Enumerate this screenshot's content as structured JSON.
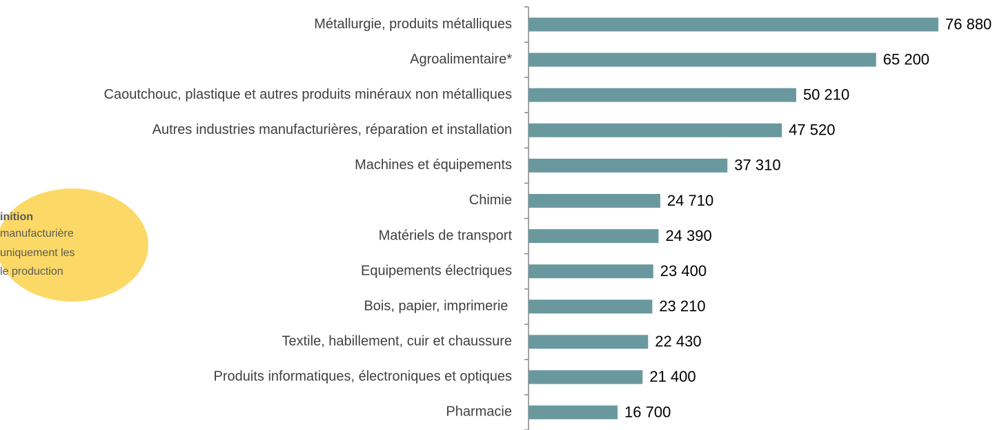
{
  "chart_data": {
    "type": "barh",
    "categories": [
      "Métallurgie, produits métalliques",
      "Agroalimentaire*",
      "Caoutchouc, plastique et autres produits minéraux non métalliques",
      "Autres industries manufacturières, réparation et installation",
      "Machines et équipements",
      "Chimie",
      "Matériels de transport",
      "Equipements électriques",
      "Bois, papier, imprimerie ",
      "Textile, habillement, cuir et chaussure",
      "Produits informatiques, électroniques et optiques",
      "Pharmacie"
    ],
    "values": [
      76880,
      65200,
      50210,
      47520,
      37310,
      24710,
      24390,
      23400,
      23210,
      22430,
      21400,
      16700
    ],
    "value_labels": [
      "76 880",
      "65 200",
      "50 210",
      "47 520",
      "37 310",
      "24 710",
      "24 390",
      "23 400",
      "23 210",
      "22 430",
      "21 400",
      "16 700"
    ],
    "color": "#69999e",
    "annotation": [
      "inition",
      "manufacturière",
      "uniquement les",
      "le production"
    ],
    "annotation_color": "#fcd966"
  }
}
